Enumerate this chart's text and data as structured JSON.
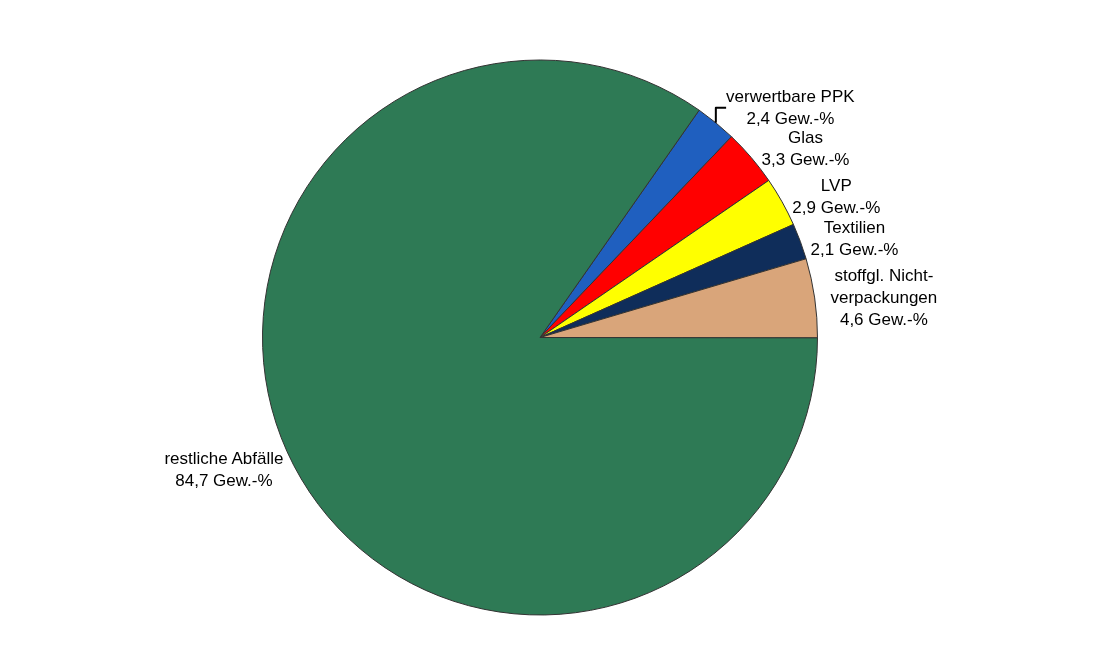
{
  "chart_data": {
    "type": "pie",
    "categories": [
      "verwertbare PPK",
      "Glas",
      "LVP",
      "Textilien",
      "stoffgl. Nicht-\nverpackungen",
      "restliche Abfälle"
    ],
    "values": [
      2.4,
      3.3,
      2.9,
      2.1,
      4.6,
      84.7
    ],
    "value_labels": [
      "2,4 Gew.-%",
      "3,3 Gew.-%",
      "2,9 Gew.-%",
      "2,1 Gew.-%",
      "4,6 Gew.-%",
      "84,7 Gew.-%"
    ],
    "colors": [
      "#1f5fbf",
      "#ff0000",
      "#ffff00",
      "#0f2d5a",
      "#d9a57a",
      "#2e7a55"
    ],
    "legend": false
  }
}
